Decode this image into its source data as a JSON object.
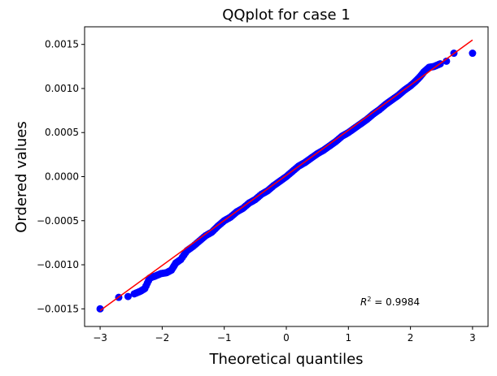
{
  "chart_data": {
    "type": "scatter",
    "title": "QQplot for case 1",
    "xlabel": "Theoretical quantiles",
    "ylabel": "Ordered values",
    "xlim": [
      -3.25,
      3.25
    ],
    "ylim": [
      -0.0017,
      0.0017
    ],
    "xticks": [
      -3,
      -2,
      -1,
      0,
      1,
      2,
      3
    ],
    "xtick_labels": [
      "−3",
      "−2",
      "−1",
      "0",
      "1",
      "2",
      "3"
    ],
    "yticks": [
      -0.0015,
      -0.001,
      -0.0005,
      0,
      0.0005,
      0.001,
      0.0015
    ],
    "ytick_labels": [
      "−0.0015",
      "−0.0010",
      "−0.0005",
      "0.0000",
      "0.0005",
      "0.0010",
      "0.0015"
    ],
    "grid": false,
    "annotation": {
      "prefix": "R",
      "superscript": "2",
      "text": " = 0.9984"
    },
    "fit_line": {
      "x": [
        -3.0,
        3.0
      ],
      "y": [
        -0.00152,
        0.00155
      ],
      "color": "#ff0000"
    },
    "point_color": "#0000ff",
    "points": [
      {
        "x": -3.0,
        "y": -0.0015
      },
      {
        "x": -2.7,
        "y": -0.00137
      },
      {
        "x": -2.55,
        "y": -0.00136
      },
      {
        "x": -2.45,
        "y": -0.00133
      },
      {
        "x": -2.35,
        "y": -0.0013
      },
      {
        "x": -2.28,
        "y": -0.00127
      },
      {
        "x": -2.2,
        "y": -0.00115
      },
      {
        "x": -2.12,
        "y": -0.00113
      },
      {
        "x": -2.02,
        "y": -0.0011
      },
      {
        "x": -1.93,
        "y": -0.00109
      },
      {
        "x": -1.85,
        "y": -0.00106
      },
      {
        "x": -1.78,
        "y": -0.00098
      },
      {
        "x": -1.7,
        "y": -0.00094
      },
      {
        "x": -1.6,
        "y": -0.00084
      },
      {
        "x": -1.5,
        "y": -0.00079
      },
      {
        "x": -1.4,
        "y": -0.00073
      },
      {
        "x": -1.3,
        "y": -0.00067
      },
      {
        "x": -1.2,
        "y": -0.00063
      },
      {
        "x": -1.1,
        "y": -0.00056
      },
      {
        "x": -1.0,
        "y": -0.0005
      },
      {
        "x": -0.9,
        "y": -0.00046
      },
      {
        "x": -0.8,
        "y": -0.0004
      },
      {
        "x": -0.7,
        "y": -0.00036
      },
      {
        "x": -0.6,
        "y": -0.0003
      },
      {
        "x": -0.5,
        "y": -0.00026
      },
      {
        "x": -0.4,
        "y": -0.0002
      },
      {
        "x": -0.3,
        "y": -0.00016
      },
      {
        "x": -0.2,
        "y": -0.0001
      },
      {
        "x": -0.1,
        "y": -5e-05
      },
      {
        "x": 0.0,
        "y": 0.0
      },
      {
        "x": 0.1,
        "y": 6e-05
      },
      {
        "x": 0.2,
        "y": 0.00012
      },
      {
        "x": 0.3,
        "y": 0.00016
      },
      {
        "x": 0.4,
        "y": 0.00021
      },
      {
        "x": 0.5,
        "y": 0.00026
      },
      {
        "x": 0.6,
        "y": 0.0003
      },
      {
        "x": 0.7,
        "y": 0.00035
      },
      {
        "x": 0.8,
        "y": 0.0004
      },
      {
        "x": 0.9,
        "y": 0.00046
      },
      {
        "x": 1.0,
        "y": 0.0005
      },
      {
        "x": 1.1,
        "y": 0.00055
      },
      {
        "x": 1.2,
        "y": 0.0006
      },
      {
        "x": 1.3,
        "y": 0.00065
      },
      {
        "x": 1.4,
        "y": 0.00071
      },
      {
        "x": 1.5,
        "y": 0.00076
      },
      {
        "x": 1.6,
        "y": 0.00082
      },
      {
        "x": 1.7,
        "y": 0.00087
      },
      {
        "x": 1.8,
        "y": 0.00092
      },
      {
        "x": 1.9,
        "y": 0.00098
      },
      {
        "x": 2.0,
        "y": 0.00103
      },
      {
        "x": 2.08,
        "y": 0.00108
      },
      {
        "x": 2.15,
        "y": 0.00113
      },
      {
        "x": 2.22,
        "y": 0.00119
      },
      {
        "x": 2.3,
        "y": 0.00124
      },
      {
        "x": 2.38,
        "y": 0.00125
      },
      {
        "x": 2.48,
        "y": 0.00128
      },
      {
        "x": 2.58,
        "y": 0.00131
      },
      {
        "x": 2.7,
        "y": 0.0014
      },
      {
        "x": 3.0,
        "y": 0.0014
      }
    ]
  }
}
